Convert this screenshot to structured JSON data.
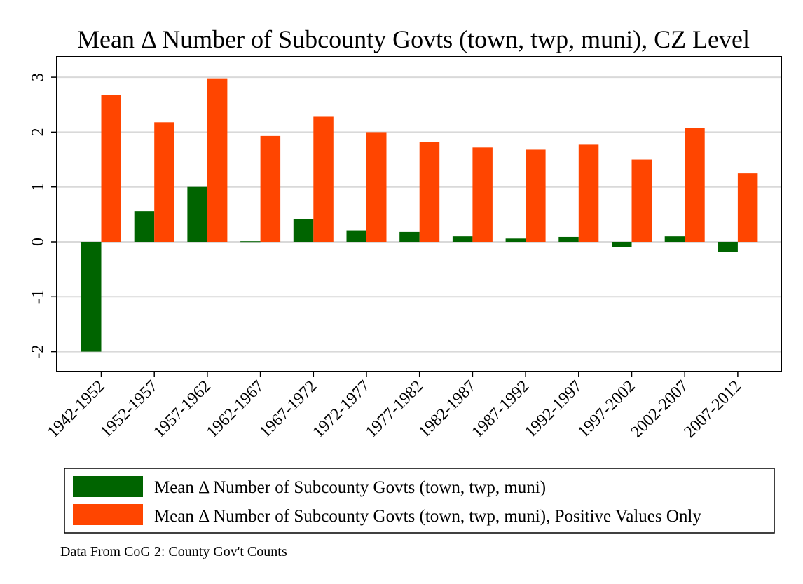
{
  "chart_data": {
    "type": "bar",
    "title": "Mean Δ Number of Subcounty Govts (town, twp, muni), CZ Level",
    "categories": [
      "1942-1952",
      "1952-1957",
      "1957-1962",
      "1962-1967",
      "1967-1972",
      "1972-1977",
      "1977-1982",
      "1982-1987",
      "1987-1992",
      "1992-1997",
      "1997-2002",
      "2002-2007",
      "2007-2012"
    ],
    "series": [
      {
        "name": "Mean Δ Number of Subcounty Govts (town, twp, muni)",
        "color": "#006400",
        "values": [
          -2.0,
          0.56,
          1.0,
          0.01,
          0.41,
          0.21,
          0.18,
          0.1,
          0.06,
          0.09,
          -0.1,
          0.1,
          -0.19
        ]
      },
      {
        "name": "Mean Δ Number of Subcounty Govts (town, twp, muni), Positive Values Only",
        "color": "#ff4500",
        "values": [
          2.68,
          2.18,
          2.98,
          1.93,
          2.28,
          2.0,
          1.82,
          1.72,
          1.68,
          1.77,
          1.5,
          2.07,
          1.25
        ]
      }
    ],
    "xlabel": "",
    "ylabel": "",
    "ylim": [
      -2.3,
      3.4
    ],
    "yticks": [
      -2,
      -1,
      0,
      1,
      2,
      3
    ],
    "ytick_labels": [
      "-2",
      "-1",
      "0",
      "1",
      "2",
      "3"
    ],
    "grid": true,
    "legend_placement": "bottom",
    "note": "Data From CoG 2: County Gov't Counts"
  }
}
